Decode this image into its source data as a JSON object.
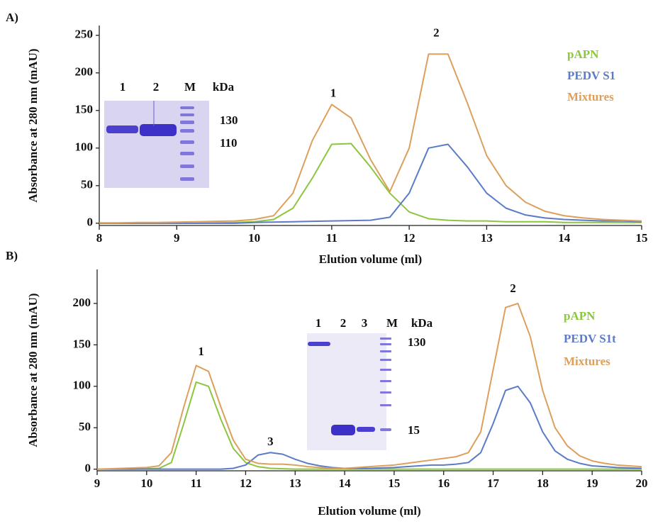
{
  "chart_data": [
    {
      "type": "line",
      "panel_label": "A)",
      "xlabel": "Elution volume (ml)",
      "ylabel": "Absorbance at 280 nm (mAU)",
      "xlim": [
        8,
        15
      ],
      "ylim": [
        -3,
        263
      ],
      "xticks": [
        8,
        9,
        10,
        11,
        12,
        13,
        14,
        15
      ],
      "yticks": [
        0,
        50,
        100,
        150,
        200,
        250
      ],
      "legend": "upper right",
      "x": [
        8,
        8.25,
        8.5,
        8.75,
        9,
        9.25,
        9.5,
        9.75,
        10,
        10.25,
        10.5,
        10.75,
        11,
        11.25,
        11.5,
        11.75,
        12,
        12.25,
        12.5,
        12.75,
        13,
        13.25,
        13.5,
        13.75,
        14,
        14.25,
        14.5,
        14.75,
        15
      ],
      "series": [
        {
          "name": "pAPN",
          "color": "#8cc63f",
          "values": [
            0,
            0,
            0,
            0,
            0,
            0,
            0.5,
            1,
            2,
            5,
            20,
            60,
            105,
            106,
            75,
            40,
            15,
            6,
            4,
            3,
            3,
            2,
            2,
            2,
            1,
            1,
            1,
            1,
            1
          ]
        },
        {
          "name": "PEDV S1",
          "color": "#5b7bc8",
          "values": [
            0,
            0,
            0,
            0,
            0,
            0,
            0,
            0,
            1,
            1.5,
            2,
            2.5,
            3,
            3.5,
            4,
            8,
            40,
            100,
            105,
            75,
            40,
            20,
            11,
            7,
            5,
            4,
            3,
            3,
            2
          ]
        },
        {
          "name": "Mixtures",
          "color": "#dd9f5c",
          "values": [
            0.5,
            0.5,
            1,
            1,
            1.5,
            2,
            2.5,
            3,
            5,
            10,
            40,
            110,
            158,
            140,
            85,
            42,
            100,
            225,
            225,
            160,
            90,
            50,
            28,
            16,
            10,
            7,
            5,
            4,
            3
          ]
        }
      ],
      "peak_labels": [
        {
          "text": "1",
          "x": 11.02,
          "y": 172
        },
        {
          "text": "2",
          "x": 12.35,
          "y": 252
        }
      ],
      "inset": {
        "lanes": [
          "1",
          "2",
          "M"
        ],
        "unit": "kDa",
        "markers": [
          "130",
          "110"
        ]
      }
    },
    {
      "type": "line",
      "panel_label": "B)",
      "xlabel": "Elution volume (ml)",
      "ylabel": "Absorbance at 280 nm (mAU)",
      "xlim": [
        9,
        20
      ],
      "ylim": [
        -2,
        241
      ],
      "xticks": [
        9,
        10,
        11,
        12,
        13,
        14,
        15,
        16,
        17,
        18,
        19,
        20
      ],
      "yticks": [
        0,
        50,
        100,
        150,
        200
      ],
      "legend": "upper right",
      "x": [
        9,
        9.25,
        9.5,
        9.75,
        10,
        10.25,
        10.5,
        10.75,
        11,
        11.25,
        11.5,
        11.75,
        12,
        12.25,
        12.5,
        12.75,
        13,
        13.25,
        13.5,
        13.75,
        14,
        14.25,
        14.5,
        14.75,
        15,
        15.25,
        15.5,
        15.75,
        16,
        16.25,
        16.5,
        16.75,
        17,
        17.25,
        17.5,
        17.75,
        18,
        18.25,
        18.5,
        18.75,
        19,
        19.25,
        19.5,
        19.75,
        20
      ],
      "series": [
        {
          "name": "pAPN",
          "color": "#8cc63f",
          "values": [
            0,
            0,
            0,
            0,
            0.5,
            1,
            8,
            55,
            105,
            100,
            60,
            25,
            8,
            3,
            1,
            0.5,
            0,
            0,
            0,
            0,
            0,
            0,
            0,
            0,
            0,
            0,
            0,
            0,
            0,
            0,
            0,
            0,
            0,
            0,
            0,
            0,
            0,
            0,
            0,
            0,
            0,
            0,
            0,
            0,
            0
          ]
        },
        {
          "name": "PEDV S1t",
          "color": "#5b7bc8",
          "values": [
            0,
            0,
            0,
            0,
            0,
            0,
            0,
            0,
            0,
            0,
            0,
            1,
            5,
            17,
            20,
            18,
            12,
            7,
            4,
            2,
            1,
            1,
            1,
            1.5,
            2,
            3,
            4,
            5,
            5,
            6,
            8,
            20,
            55,
            95,
            100,
            80,
            45,
            22,
            12,
            7,
            4,
            3,
            2,
            1.5,
            1
          ]
        },
        {
          "name": "Mixtures",
          "color": "#dd9f5c",
          "values": [
            0,
            0.5,
            1,
            1.5,
            2,
            4,
            20,
            75,
            125,
            118,
            75,
            35,
            12,
            7,
            6,
            6,
            5,
            3,
            2,
            1,
            1,
            2,
            3,
            4,
            5,
            7,
            9,
            11,
            13,
            15,
            20,
            45,
            120,
            195,
            200,
            160,
            95,
            50,
            28,
            16,
            10,
            7,
            5,
            4,
            3
          ]
        }
      ],
      "peak_labels": [
        {
          "text": "1",
          "x": 11.1,
          "y": 141
        },
        {
          "text": "3",
          "x": 12.5,
          "y": 32
        },
        {
          "text": "2",
          "x": 17.4,
          "y": 217
        }
      ],
      "inset": {
        "lanes": [
          "1",
          "2",
          "3",
          "M"
        ],
        "unit": "kDa",
        "markers": [
          "130",
          "15"
        ]
      }
    }
  ]
}
